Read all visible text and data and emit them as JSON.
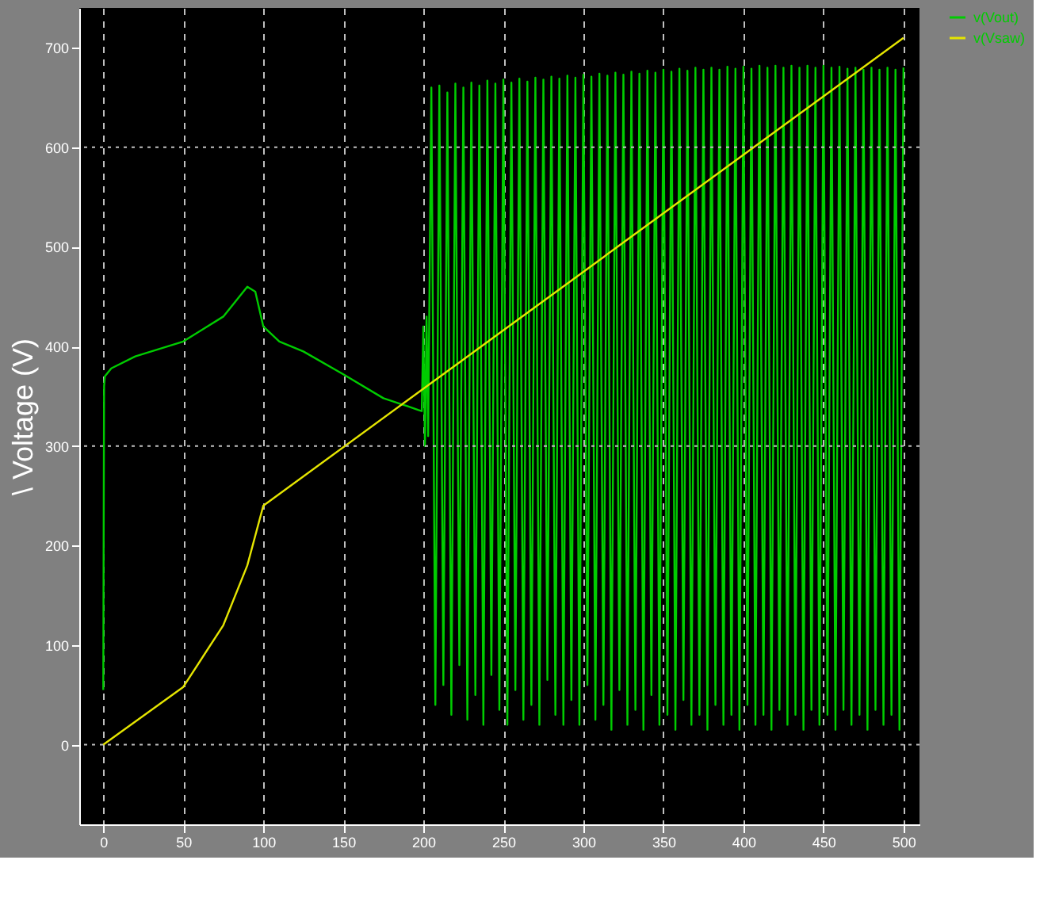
{
  "chart_data": {
    "type": "line",
    "ylabel": "\\ Voltage (V)",
    "xlim": [
      -15,
      510
    ],
    "xticks": [
      0,
      50,
      100,
      150,
      200,
      250,
      300,
      350,
      400,
      450,
      500
    ],
    "ylim": [
      -80,
      740
    ],
    "yticks": [
      0,
      100,
      200,
      300,
      400,
      500,
      600,
      700
    ],
    "grid": "x",
    "legend": "top right",
    "line_style": "solid",
    "marker": "none",
    "ref_lines": [
      {
        "axis": "y",
        "value": 0,
        "color": "#c0c0c0",
        "line_style": "dotted"
      },
      {
        "axis": "y",
        "value": 300,
        "color": "#c0c0c0",
        "line_style": "dotted"
      },
      {
        "axis": "y",
        "value": 600,
        "color": "#c0c0c0",
        "line_style": "dotted"
      }
    ],
    "series": [
      {
        "name": "v(Vout)",
        "color": "#00cc00",
        "x": [
          0,
          0.5,
          1,
          5,
          20,
          50,
          75,
          90,
          95,
          100,
          110,
          125,
          150,
          175,
          190,
          197,
          199,
          200,
          201,
          202,
          203,
          205,
          207.5,
          210,
          212.5,
          215,
          217.5,
          220,
          222.5,
          225,
          227.5,
          230,
          232.5,
          235,
          237.5,
          240,
          242.5,
          245,
          247.5,
          250,
          252.5,
          255,
          257.5,
          260,
          262.5,
          265,
          267.5,
          270,
          272.5,
          275,
          277.5,
          280,
          282.5,
          285,
          287.5,
          290,
          292.5,
          295,
          297.5,
          300,
          302.5,
          305,
          307.5,
          310,
          312.5,
          315,
          317.5,
          320,
          322.5,
          325,
          327.5,
          330,
          332.5,
          335,
          337.5,
          340,
          342.5,
          345,
          347.5,
          350,
          352.5,
          355,
          357.5,
          360,
          362.5,
          365,
          367.5,
          370,
          372.5,
          375,
          377.5,
          380,
          382.5,
          385,
          387.5,
          390,
          392.5,
          395,
          397.5,
          400,
          402.5,
          405,
          407.5,
          410,
          412.5,
          415,
          417.5,
          420,
          422.5,
          425,
          427.5,
          430,
          432.5,
          435,
          437.5,
          440,
          442.5,
          445,
          447.5,
          450,
          452.5,
          455,
          457.5,
          460,
          462.5,
          465,
          467.5,
          470,
          472.5,
          475,
          477.5,
          480,
          482.5,
          485,
          487.5,
          490,
          492.5,
          495,
          497.5,
          500
        ],
        "values": [
          55,
          360,
          370,
          378,
          390,
          405,
          430,
          460,
          455,
          420,
          405,
          395,
          372,
          348,
          340,
          336,
          335,
          420,
          300,
          430,
          310,
          660,
          40,
          662,
          60,
          655,
          30,
          664,
          80,
          660,
          25,
          665,
          50,
          662,
          20,
          667,
          70,
          664,
          35,
          668,
          20,
          665,
          55,
          669,
          25,
          666,
          40,
          670,
          20,
          668,
          65,
          671,
          30,
          669,
          20,
          672,
          45,
          670,
          20,
          673,
          60,
          671,
          25,
          674,
          40,
          672,
          15,
          675,
          55,
          673,
          20,
          676,
          35,
          674,
          15,
          677,
          50,
          675,
          20,
          678,
          30,
          676,
          15,
          679,
          45,
          677,
          20,
          680,
          30,
          678,
          15,
          680,
          40,
          678,
          20,
          681,
          30,
          679,
          15,
          681,
          40,
          679,
          20,
          682,
          30,
          680,
          15,
          682,
          35,
          680,
          20,
          682,
          30,
          680,
          15,
          682,
          35,
          680,
          20,
          682,
          30,
          680,
          15,
          681,
          35,
          679,
          20,
          680,
          30,
          678,
          15,
          680,
          35,
          678,
          20,
          680,
          30,
          678,
          15,
          680
        ]
      },
      {
        "name": "v(Vsaw)",
        "color": "#e5e500",
        "x": [
          0,
          50,
          75,
          90,
          100,
          500
        ],
        "values": [
          0,
          58,
          120,
          180,
          240,
          710
        ]
      }
    ]
  }
}
